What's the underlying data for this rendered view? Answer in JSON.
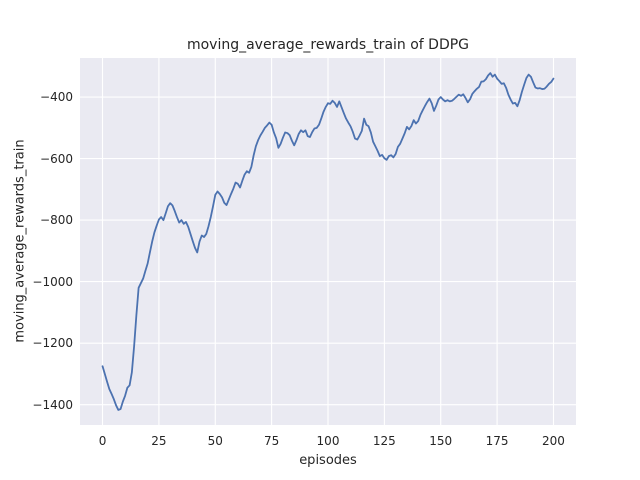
{
  "chart": {
    "title": "moving_average_rewards_train of DDPG",
    "xlabel": "episodes",
    "ylabel": "moving_average_rewards_train",
    "x_ticks": [
      0,
      25,
      50,
      75,
      100,
      125,
      150,
      175,
      200
    ],
    "y_ticks": [
      -400,
      -600,
      -800,
      -1000,
      -1200,
      -1400
    ],
    "colors": {
      "figure_bg": "#ffffff",
      "plot_bg": "#eaeaf2",
      "grid": "#ffffff",
      "line": "#4c72b0",
      "text": "#262626"
    }
  },
  "chart_data": {
    "type": "line",
    "title": "moving_average_rewards_train of DDPG",
    "xlabel": "episodes",
    "ylabel": "moving_average_rewards_train",
    "series_name": "moving average reward (DDPG)",
    "x_start": 0,
    "x_step": 1,
    "xlim": [
      -10,
      210
    ],
    "ylim": [
      -1466,
      -273
    ],
    "grid": true,
    "legend_position": "none",
    "y": [
      -1275,
      -1300,
      -1325,
      -1349,
      -1365,
      -1382,
      -1402,
      -1417,
      -1414,
      -1390,
      -1371,
      -1345,
      -1337,
      -1295,
      -1210,
      -1110,
      -1020,
      -1005,
      -990,
      -965,
      -941,
      -905,
      -870,
      -840,
      -818,
      -798,
      -790,
      -800,
      -778,
      -755,
      -745,
      -752,
      -770,
      -790,
      -808,
      -800,
      -812,
      -806,
      -822,
      -845,
      -868,
      -890,
      -905,
      -870,
      -850,
      -855,
      -845,
      -820,
      -790,
      -755,
      -718,
      -707,
      -715,
      -726,
      -744,
      -751,
      -733,
      -715,
      -698,
      -678,
      -682,
      -694,
      -672,
      -652,
      -641,
      -646,
      -627,
      -590,
      -560,
      -540,
      -525,
      -513,
      -500,
      -492,
      -483,
      -490,
      -515,
      -534,
      -565,
      -552,
      -532,
      -515,
      -517,
      -524,
      -542,
      -557,
      -540,
      -520,
      -508,
      -514,
      -508,
      -527,
      -530,
      -514,
      -502,
      -500,
      -490,
      -470,
      -448,
      -432,
      -420,
      -422,
      -412,
      -419,
      -432,
      -414,
      -433,
      -452,
      -470,
      -483,
      -495,
      -513,
      -535,
      -538,
      -525,
      -510,
      -470,
      -490,
      -495,
      -515,
      -545,
      -560,
      -575,
      -592,
      -588,
      -599,
      -604,
      -592,
      -589,
      -596,
      -585,
      -562,
      -552,
      -535,
      -518,
      -497,
      -505,
      -494,
      -475,
      -486,
      -478,
      -458,
      -443,
      -429,
      -416,
      -405,
      -420,
      -445,
      -428,
      -408,
      -400,
      -408,
      -414,
      -410,
      -414,
      -412,
      -406,
      -399,
      -392,
      -396,
      -391,
      -403,
      -417,
      -407,
      -390,
      -381,
      -373,
      -367,
      -350,
      -349,
      -342,
      -330,
      -322,
      -334,
      -327,
      -340,
      -348,
      -357,
      -355,
      -370,
      -392,
      -408,
      -421,
      -419,
      -430,
      -410,
      -383,
      -360,
      -338,
      -327,
      -334,
      -352,
      -369,
      -372,
      -371,
      -374,
      -373,
      -366,
      -357,
      -351,
      -340
    ]
  }
}
